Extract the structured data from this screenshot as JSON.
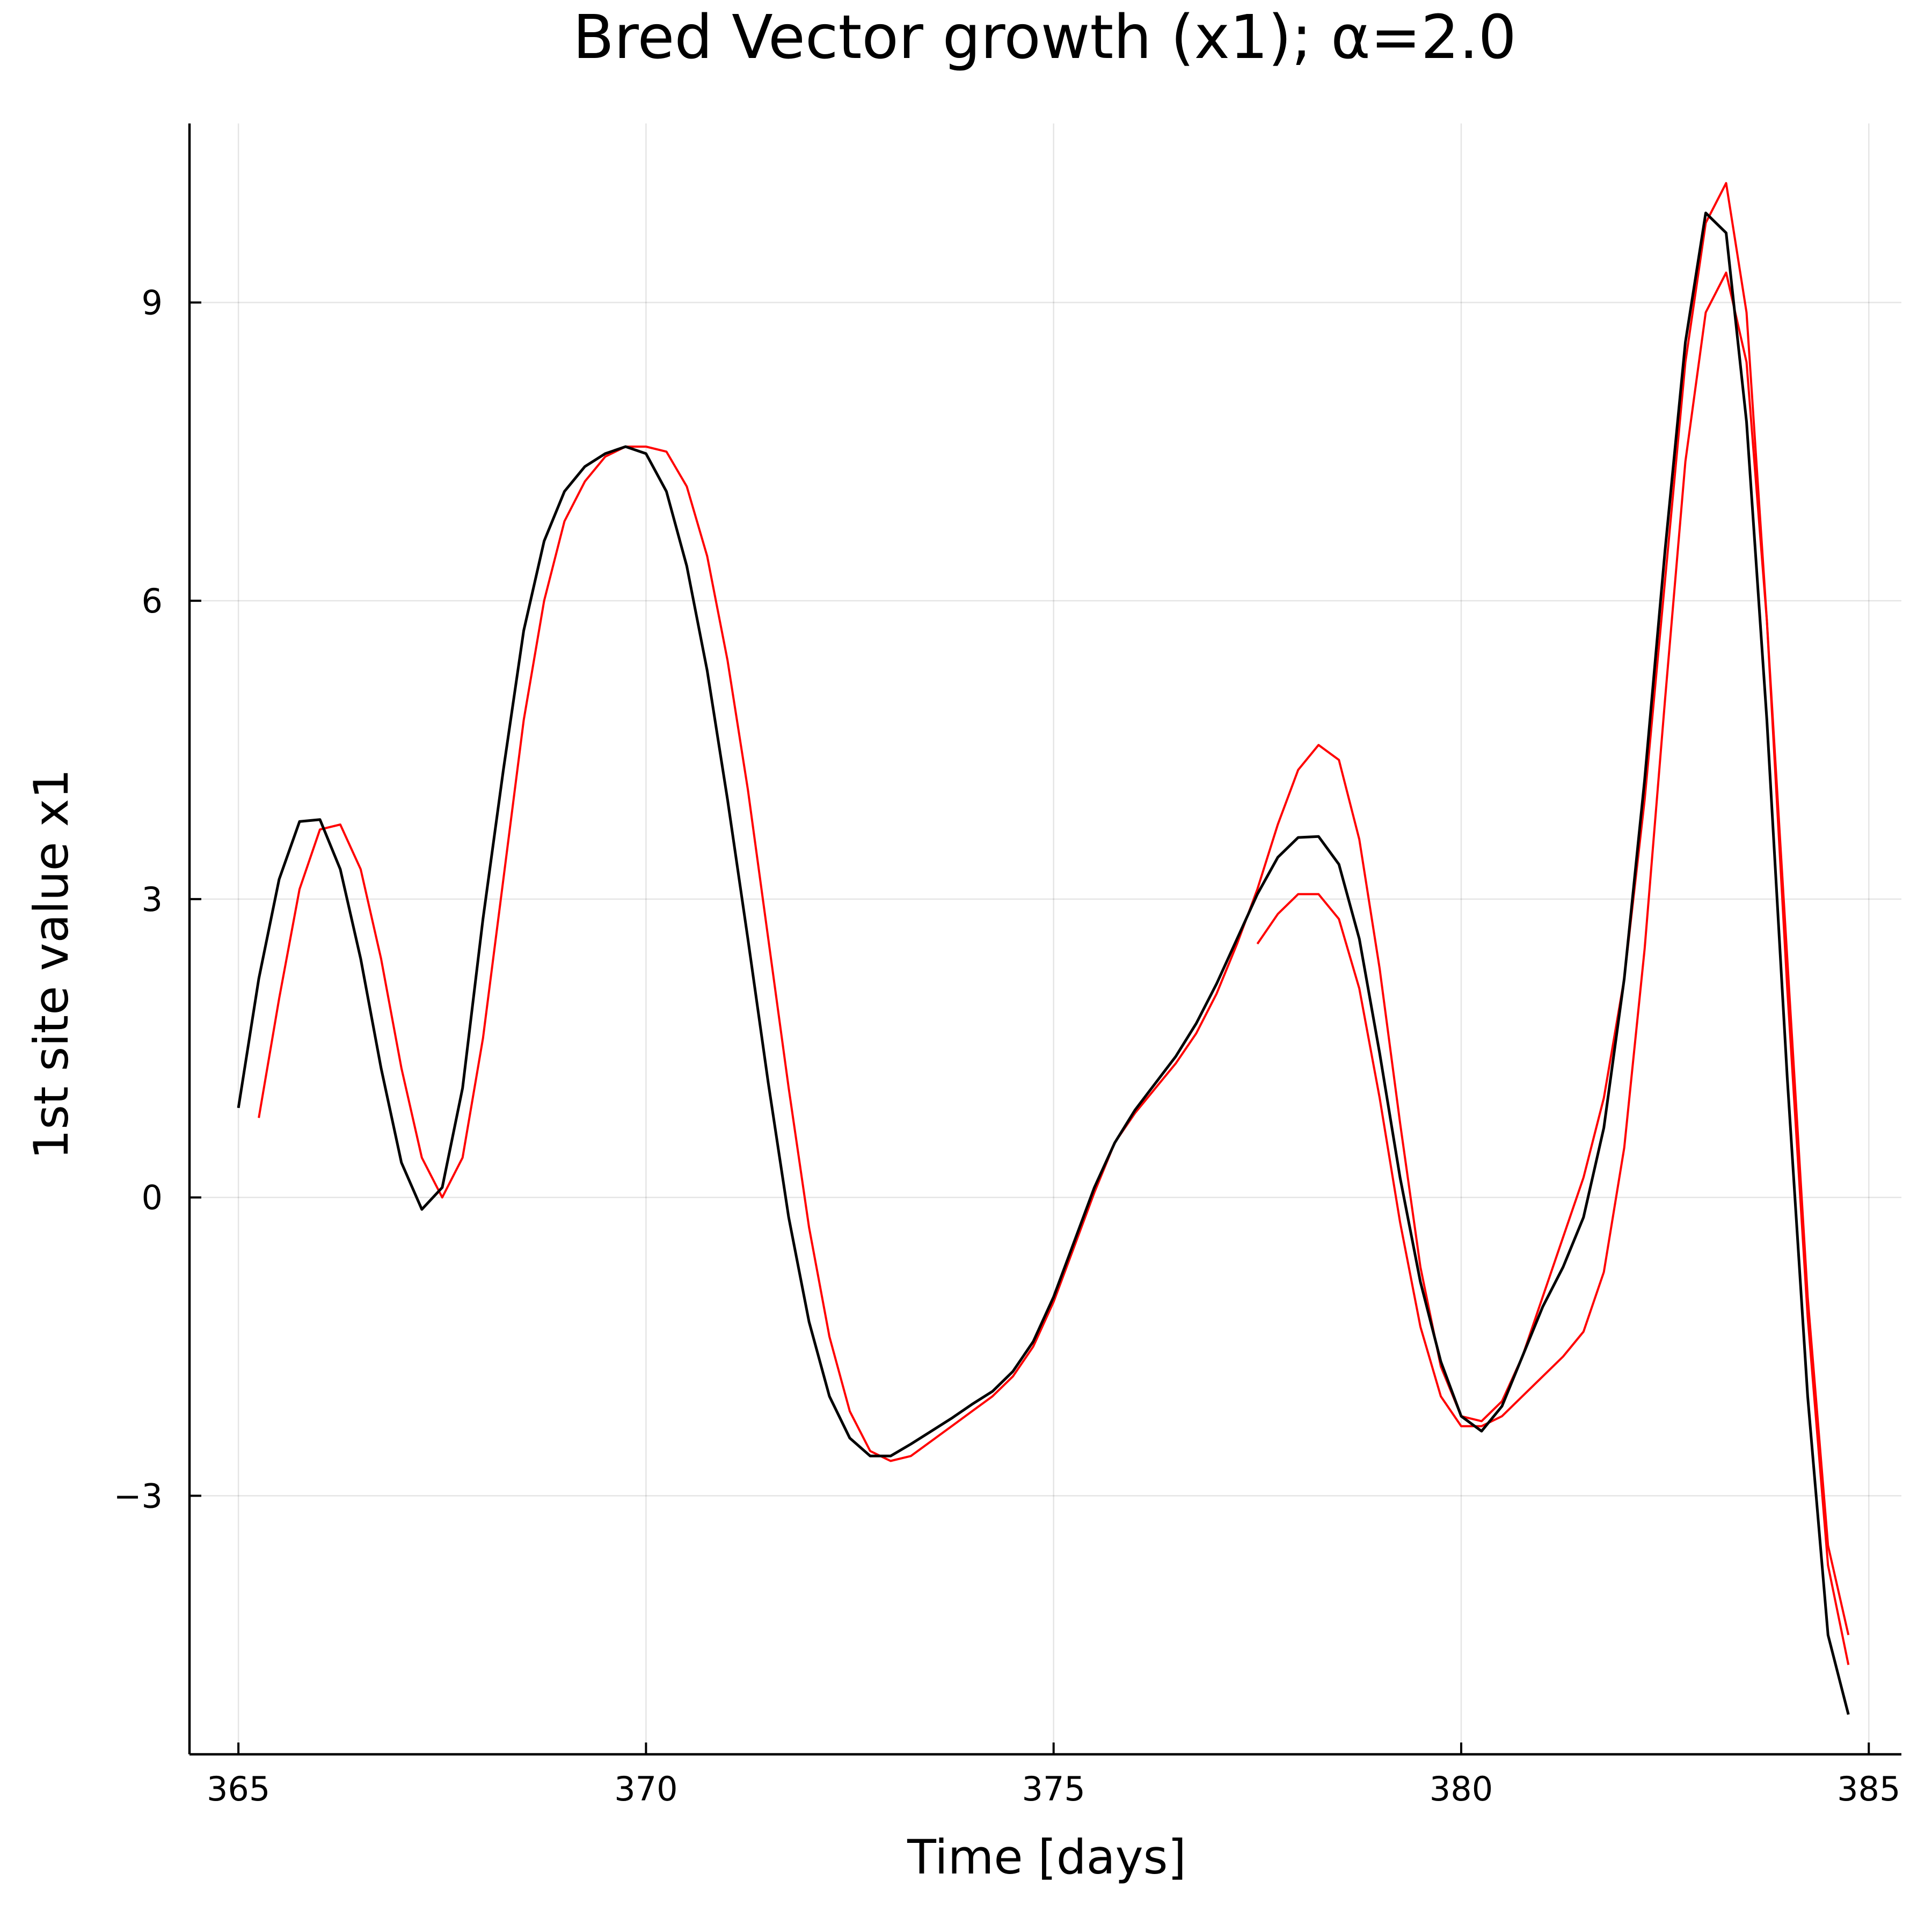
{
  "chart_data": {
    "type": "line",
    "title": "Bred Vector growth (x1); α=2.0",
    "xlabel": "Time [days]",
    "ylabel": "1st site value x1",
    "xlim": [
      364.4,
      385.4
    ],
    "ylim": [
      -5.6,
      10.8
    ],
    "x_ticks": [
      "365",
      "370",
      "375",
      "380",
      "385"
    ],
    "y_ticks": [
      "−3",
      "0",
      "3",
      "6",
      "9"
    ],
    "x_tick_values": [
      365,
      370,
      375,
      380,
      385
    ],
    "y_tick_values": [
      -3,
      0,
      3,
      6,
      9
    ],
    "grid": true,
    "legend": "none",
    "colors": {
      "control": "#000000",
      "ensemble": "#ff0000"
    },
    "series": [
      {
        "role": "control",
        "color": "#000000",
        "x": [
          365.0,
          365.25,
          365.5,
          365.75,
          366.0,
          366.25,
          366.5,
          366.75,
          367.0,
          367.25,
          367.5,
          367.75,
          368.0,
          368.25,
          368.5,
          368.75,
          369.0,
          369.25,
          369.5,
          369.75,
          370.0,
          370.25,
          370.5,
          370.75,
          371.0,
          371.25,
          371.5,
          371.75,
          372.0,
          372.25,
          372.5,
          372.75,
          373.0,
          373.25,
          373.5,
          373.75,
          374.0,
          374.25,
          374.5,
          374.75,
          375.0,
          375.25,
          375.5,
          375.75,
          376.0,
          376.25,
          376.5,
          376.75,
          377.0,
          377.25,
          377.5,
          377.75,
          378.0,
          378.25,
          378.5,
          378.75,
          379.0,
          379.25,
          379.5,
          379.75,
          380.0,
          380.25,
          380.5,
          380.75,
          381.0,
          381.25,
          381.5,
          381.75,
          382.0,
          382.25,
          382.5,
          382.75,
          383.0,
          383.25,
          383.5,
          383.75,
          384.0,
          384.25,
          384.5,
          384.75
        ],
        "y": [
          0.9,
          2.2,
          3.2,
          3.78,
          3.8,
          3.3,
          2.4,
          1.3,
          0.35,
          -0.12,
          0.1,
          1.1,
          2.8,
          4.3,
          5.7,
          6.6,
          7.1,
          7.35,
          7.48,
          7.55,
          7.48,
          7.1,
          6.35,
          5.3,
          4.0,
          2.6,
          1.15,
          -0.2,
          -1.25,
          -2.0,
          -2.42,
          -2.6,
          -2.6,
          -2.48,
          -2.35,
          -2.22,
          -2.08,
          -1.95,
          -1.75,
          -1.45,
          -1.0,
          -0.45,
          0.1,
          0.55,
          0.88,
          1.15,
          1.42,
          1.75,
          2.15,
          2.6,
          3.05,
          3.42,
          3.62,
          3.63,
          3.35,
          2.6,
          1.45,
          0.2,
          -0.85,
          -1.65,
          -2.2,
          -2.35,
          -2.1,
          -1.6,
          -1.1,
          -0.7,
          -0.2,
          0.7,
          2.2,
          4.2,
          6.5,
          8.6,
          9.9,
          9.7,
          7.8,
          4.8,
          1.2,
          -2.0,
          -4.4,
          -5.2
        ]
      },
      {
        "role": "ensemble",
        "color": "#ff0000",
        "x": [
          365.25,
          365.5,
          365.75,
          366.0,
          366.25,
          366.5,
          366.75,
          367.0,
          367.25,
          367.5,
          367.75,
          368.0,
          368.25,
          368.5,
          368.75,
          369.0,
          369.25,
          369.5,
          369.75,
          370.0,
          370.25,
          370.5,
          370.75,
          371.0,
          371.25,
          371.5,
          371.75,
          372.0,
          372.25,
          372.5,
          372.75,
          373.0,
          373.25,
          373.5,
          373.75,
          374.0,
          374.25,
          374.5,
          374.75,
          375.0,
          375.25,
          375.5,
          375.75,
          376.0,
          376.25,
          376.5,
          376.75,
          377.0,
          377.25,
          377.5,
          377.75,
          378.0,
          378.25,
          378.5,
          378.75,
          379.0,
          379.25,
          379.5,
          379.75,
          380.0,
          380.25,
          380.5,
          380.75,
          381.0,
          381.25,
          381.5,
          381.75,
          382.0,
          382.25,
          382.5,
          382.75,
          383.0,
          383.25,
          383.5,
          383.75,
          384.0,
          384.25,
          384.5,
          384.75
        ],
        "y": [
          0.8,
          2.0,
          3.1,
          3.7,
          3.75,
          3.3,
          2.4,
          1.3,
          0.4,
          0.0,
          0.4,
          1.6,
          3.2,
          4.8,
          6.0,
          6.8,
          7.2,
          7.45,
          7.55,
          7.55,
          7.5,
          7.15,
          6.45,
          5.4,
          4.1,
          2.6,
          1.1,
          -0.3,
          -1.4,
          -2.15,
          -2.55,
          -2.65,
          -2.6,
          -2.45,
          -2.3,
          -2.15,
          -2.0,
          -1.8,
          -1.5,
          -1.05,
          -0.5,
          0.05,
          0.55,
          0.85,
          1.1,
          1.35,
          1.65,
          2.05,
          2.55,
          3.1,
          3.75,
          4.3,
          4.55,
          4.4,
          3.6,
          2.3,
          0.75,
          -0.7,
          -1.7,
          -2.2,
          -2.25,
          -2.05,
          -1.6,
          -1.0,
          -0.4,
          0.2,
          1.0,
          2.2,
          4.0,
          6.2,
          8.4,
          9.8,
          10.2,
          8.9,
          5.8,
          2.1,
          -1.2,
          -3.7,
          -4.7
        ]
      },
      {
        "role": "ensemble",
        "color": "#ff0000",
        "x": [
          377.5,
          377.75,
          378.0,
          378.25,
          378.5,
          378.75,
          379.0,
          379.25,
          379.5,
          379.75,
          380.0,
          380.25,
          380.5,
          380.75,
          381.0,
          381.25,
          381.5,
          381.75,
          382.0,
          382.25,
          382.5,
          382.75,
          383.0,
          383.25,
          383.5,
          383.75,
          384.0,
          384.25,
          384.5,
          384.75
        ],
        "y": [
          2.55,
          2.85,
          3.05,
          3.05,
          2.8,
          2.1,
          1.0,
          -0.25,
          -1.3,
          -2.0,
          -2.3,
          -2.3,
          -2.2,
          -2.0,
          -1.8,
          -1.6,
          -1.35,
          -0.75,
          0.5,
          2.5,
          5.0,
          7.4,
          8.9,
          9.3,
          8.4,
          5.8,
          2.4,
          -1.0,
          -3.5,
          -4.4
        ]
      }
    ]
  }
}
